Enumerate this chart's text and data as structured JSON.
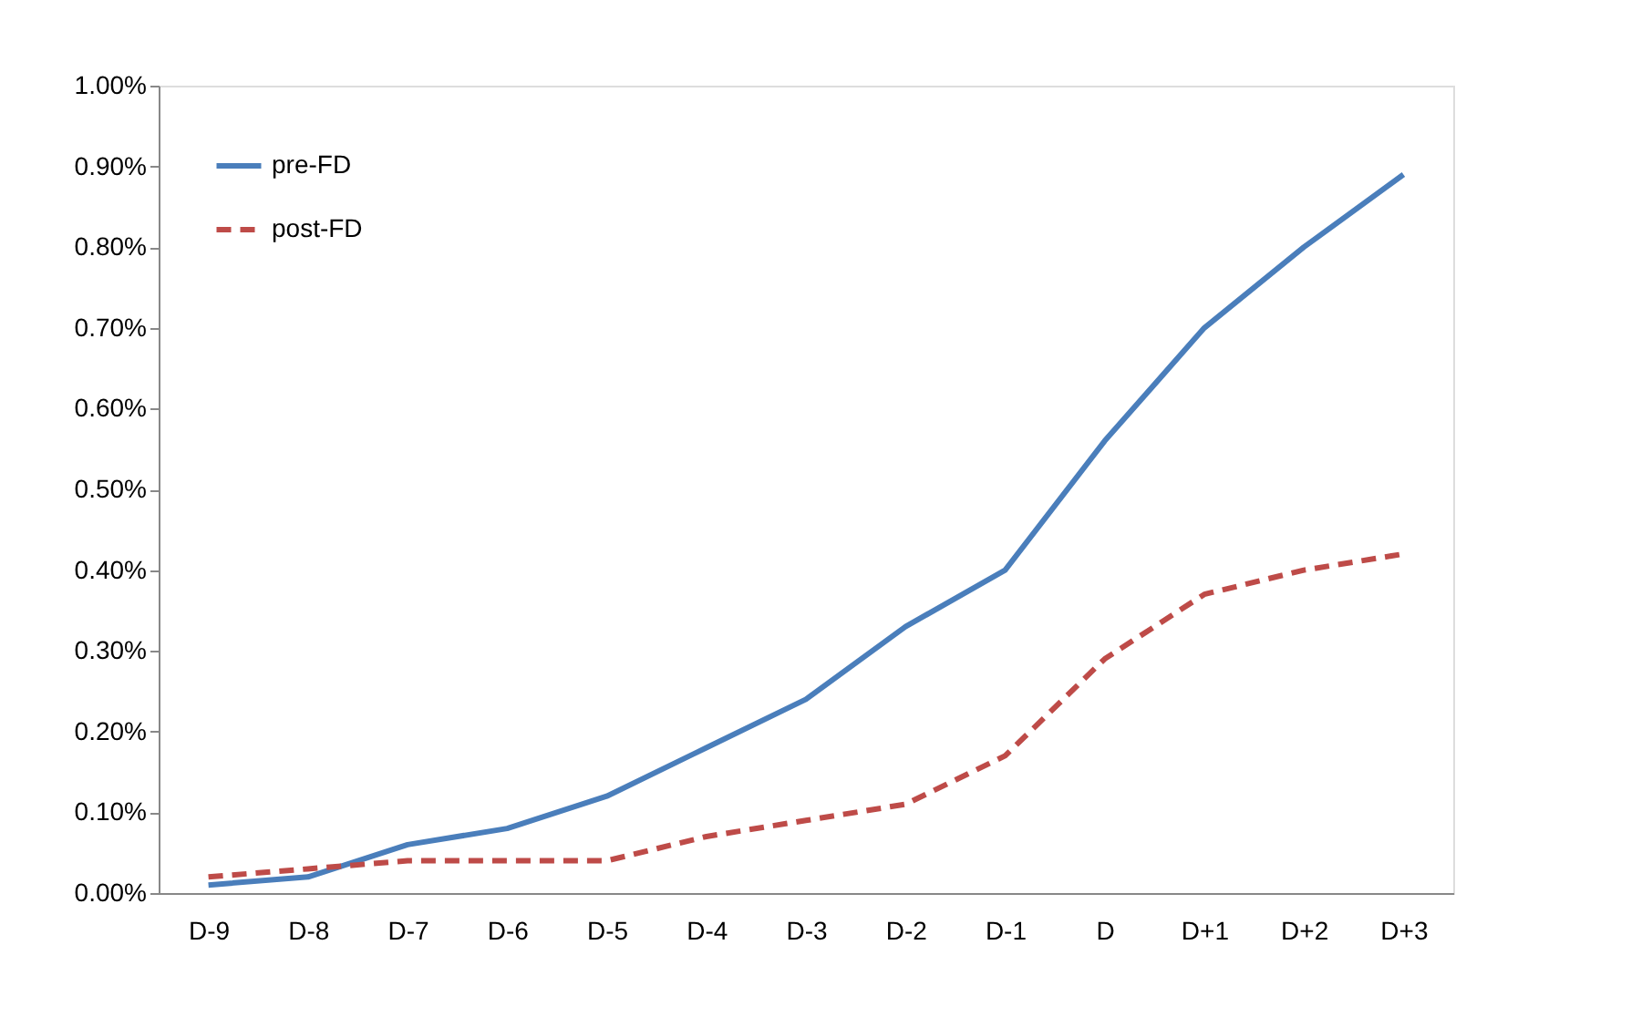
{
  "chart_data": {
    "type": "line",
    "categories": [
      "D-9",
      "D-8",
      "D-7",
      "D-6",
      "D-5",
      "D-4",
      "D-3",
      "D-2",
      "D-1",
      "D",
      "D+1",
      "D+2",
      "D+3"
    ],
    "series": [
      {
        "name": "pre-FD",
        "color": "#4a7ebb",
        "line_style": "solid",
        "values": [
          0.01,
          0.02,
          0.06,
          0.08,
          0.12,
          0.18,
          0.24,
          0.33,
          0.4,
          0.56,
          0.7,
          0.8,
          0.89
        ]
      },
      {
        "name": "post-FD",
        "color": "#be4b48",
        "line_style": "dashed",
        "values": [
          0.02,
          0.03,
          0.04,
          0.04,
          0.04,
          0.07,
          0.09,
          0.11,
          0.17,
          0.29,
          0.37,
          0.4,
          0.42
        ]
      }
    ],
    "ylim": [
      0,
      1
    ],
    "yticks": [
      {
        "value": 0,
        "label": "0.00%"
      },
      {
        "value": 0.1,
        "label": "0.10%"
      },
      {
        "value": 0.2,
        "label": "0.20%"
      },
      {
        "value": 0.3,
        "label": "0.30%"
      },
      {
        "value": 0.4,
        "label": "0.40%"
      },
      {
        "value": 0.5,
        "label": "0.50%"
      },
      {
        "value": 0.6,
        "label": "0.60%"
      },
      {
        "value": 0.7,
        "label": "0.70%"
      },
      {
        "value": 0.8,
        "label": "0.80%"
      },
      {
        "value": 0.9,
        "label": "0.90%"
      },
      {
        "value": 1,
        "label": "1.00%"
      }
    ],
    "grid": false,
    "legend": "top left",
    "marker": "none"
  }
}
